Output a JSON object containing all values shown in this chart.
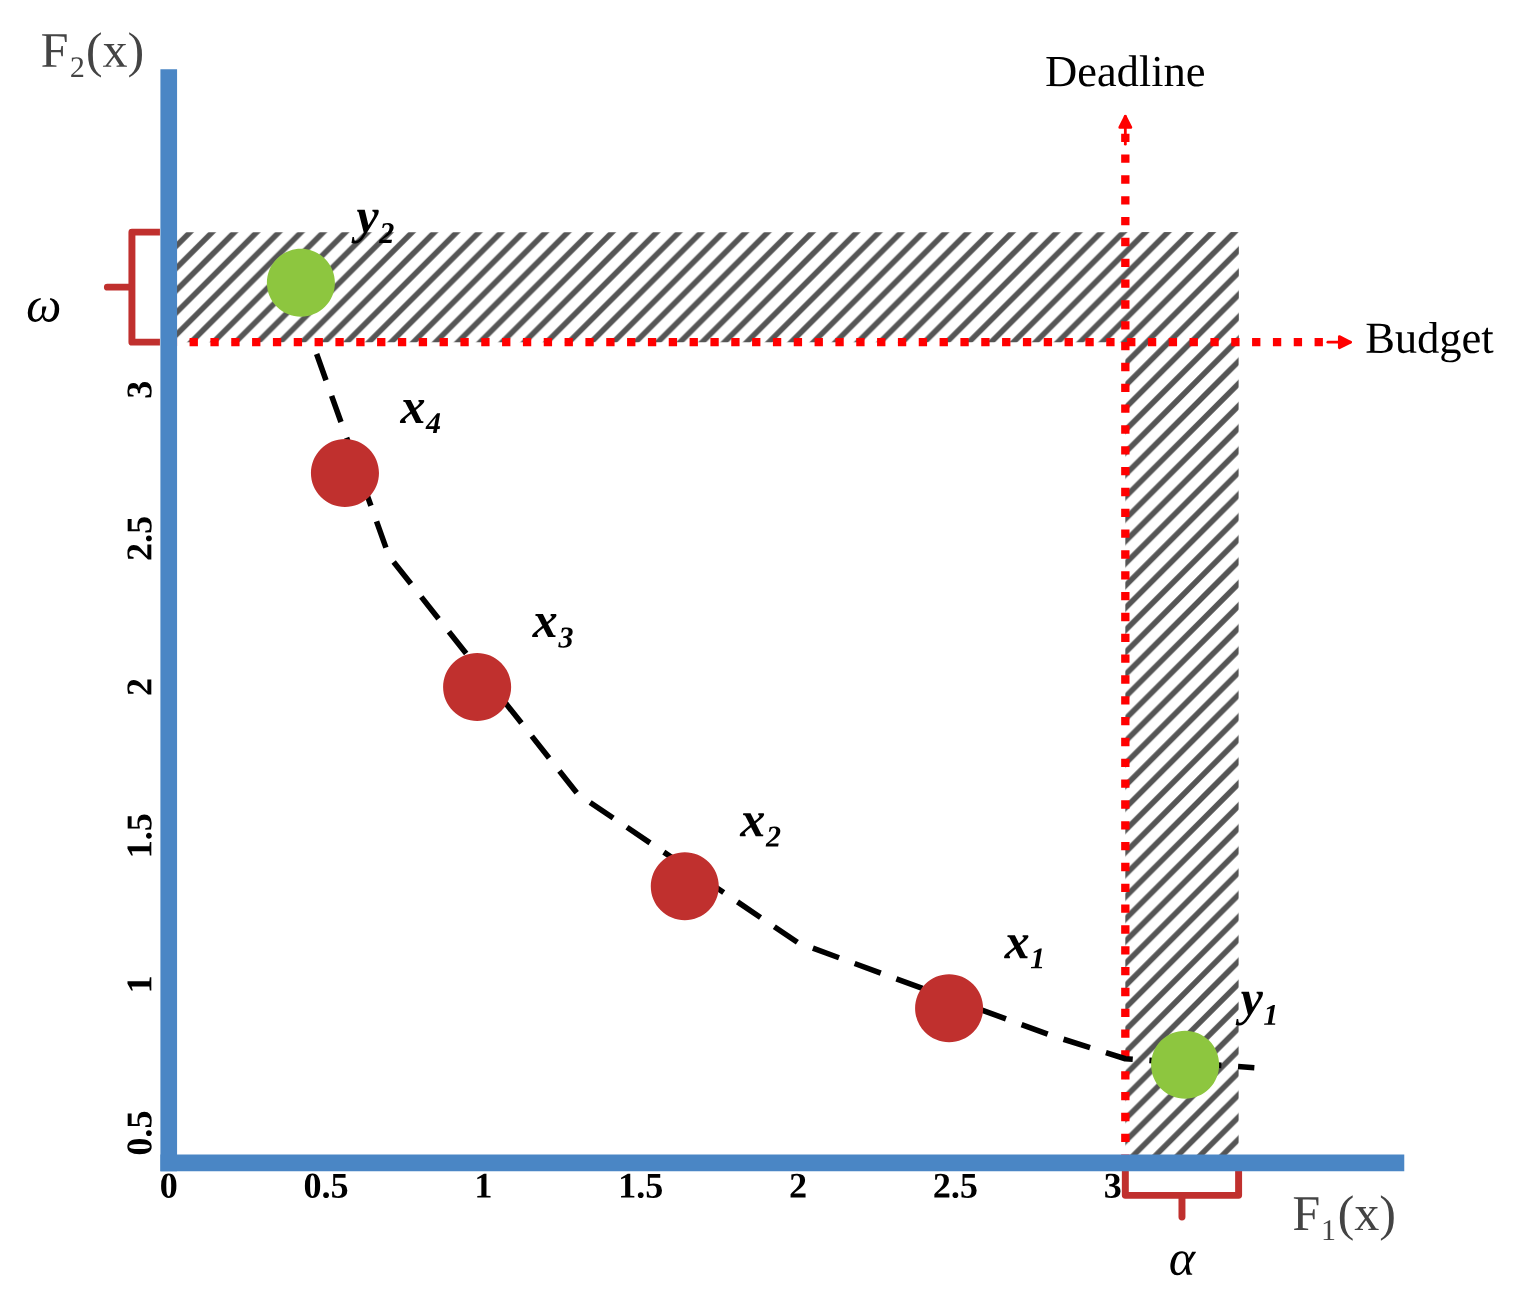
{
  "chart_data": {
    "type": "scatter",
    "xlabel": "F₁(x)",
    "ylabel": "F₂(x)",
    "xlim": [
      0,
      3.9
    ],
    "ylim": [
      0.4,
      4.05
    ],
    "xticks": [
      0,
      0.5,
      1,
      1.5,
      2,
      2.5,
      3
    ],
    "yticks": [
      0.5,
      1,
      1.5,
      2,
      2.5,
      3
    ],
    "grid": false,
    "legend": false,
    "series": [
      {
        "type": "line",
        "marker": "none",
        "line_style": "dashed",
        "color": "#000000",
        "x": [
          0.47,
          0.7,
          1.3,
          2.0,
          2.8,
          3.04,
          3.45
        ],
        "values": [
          3.12,
          2.44,
          1.64,
          1.14,
          0.83,
          0.75,
          0.72
        ]
      },
      {
        "marker": "circle",
        "x": [
          0.42,
          0.56,
          0.98,
          1.64,
          2.48,
          3.23
        ],
        "values": [
          3.36,
          2.72,
          2.0,
          1.33,
          0.92,
          0.73
        ],
        "colors": [
          "#8dc63f",
          "#c0302e",
          "#c0302e",
          "#c0302e",
          "#c0302e",
          "#8dc63f"
        ]
      }
    ],
    "ref_lines": [
      {
        "axis": "y",
        "value": 3.16,
        "label": "Budget",
        "color": "#ff0000",
        "line_style": "dotted"
      },
      {
        "axis": "x",
        "value": 3.04,
        "label": "Deadline",
        "color": "#ff0000",
        "line_style": "dotted"
      }
    ],
    "bands": [
      {
        "axis": "y",
        "from": 3.16,
        "to": 3.53,
        "label": "ω",
        "color": "#555555"
      },
      {
        "axis": "x",
        "from": 3.04,
        "to": 3.4,
        "label": "α",
        "color": "#555555"
      }
    ],
    "annotations": [
      {
        "text": "y₂",
        "x": 0.42,
        "y": 3.36
      },
      {
        "text": "x₄",
        "x": 0.56,
        "y": 2.72
      },
      {
        "text": "x₃",
        "x": 0.98,
        "y": 2.0
      },
      {
        "text": "x₂",
        "x": 1.64,
        "y": 1.33
      },
      {
        "text": "x₁",
        "x": 2.48,
        "y": 0.92
      },
      {
        "text": "y₁",
        "x": 3.23,
        "y": 0.73
      }
    ]
  }
}
